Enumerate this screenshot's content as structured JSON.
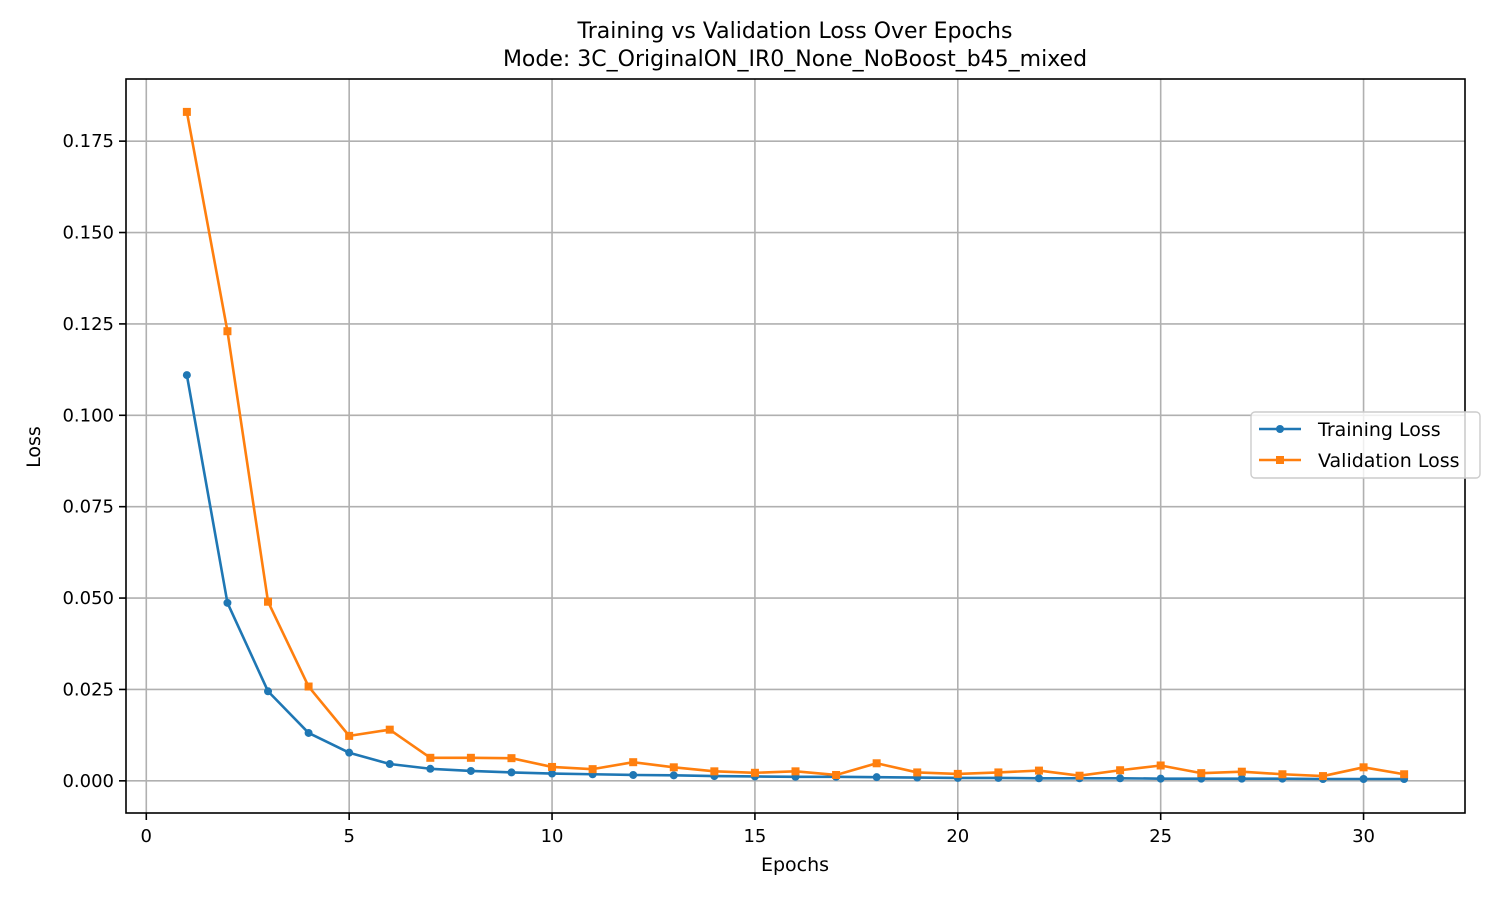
{
  "chart_data": {
    "type": "line",
    "title": "Training vs Validation Loss Over Epochs",
    "subtitle": "Mode: 3C_OriginalON_IR0_None_NoBoost_b45_mixed",
    "xlabel": "Epochs",
    "ylabel": "Loss",
    "xlim": [
      -0.5,
      32.5
    ],
    "ylim": [
      -0.0088,
      0.192
    ],
    "xticks": [
      0,
      5,
      10,
      15,
      20,
      25,
      30
    ],
    "yticks": [
      0.0,
      0.025,
      0.05,
      0.075,
      0.1,
      0.125,
      0.15,
      0.175
    ],
    "xtick_labels": [
      "0",
      "5",
      "10",
      "15",
      "20",
      "25",
      "30"
    ],
    "ytick_labels": [
      "0.000",
      "0.025",
      "0.050",
      "0.075",
      "0.100",
      "0.125",
      "0.150",
      "0.175"
    ],
    "grid": true,
    "legend_position": "center-right",
    "x": [
      1,
      2,
      3,
      4,
      5,
      6,
      7,
      8,
      9,
      10,
      11,
      12,
      13,
      14,
      15,
      16,
      17,
      18,
      19,
      20,
      21,
      22,
      23,
      24,
      25,
      26,
      27,
      28,
      29,
      30,
      31
    ],
    "series": [
      {
        "name": "Training Loss",
        "color": "#1f77b4",
        "marker": "circle",
        "values": [
          0.111,
          0.0487,
          0.0245,
          0.0131,
          0.0077,
          0.0046,
          0.0033,
          0.0027,
          0.0023,
          0.002,
          0.0018,
          0.0016,
          0.0015,
          0.0013,
          0.0012,
          0.0011,
          0.0011,
          0.001,
          0.0009,
          0.0008,
          0.0008,
          0.0007,
          0.0007,
          0.0007,
          0.0006,
          0.0006,
          0.0006,
          0.0006,
          0.0005,
          0.0005,
          0.0005
        ]
      },
      {
        "name": "Validation Loss",
        "color": "#ff7f0e",
        "marker": "square",
        "values": [
          0.183,
          0.123,
          0.049,
          0.0258,
          0.0123,
          0.014,
          0.0063,
          0.0063,
          0.0062,
          0.0038,
          0.0032,
          0.0051,
          0.0037,
          0.0026,
          0.0022,
          0.0026,
          0.0016,
          0.0048,
          0.0023,
          0.0019,
          0.0023,
          0.0028,
          0.0014,
          0.0029,
          0.0042,
          0.0021,
          0.0025,
          0.0018,
          0.0013,
          0.0037,
          0.0018
        ]
      }
    ]
  }
}
